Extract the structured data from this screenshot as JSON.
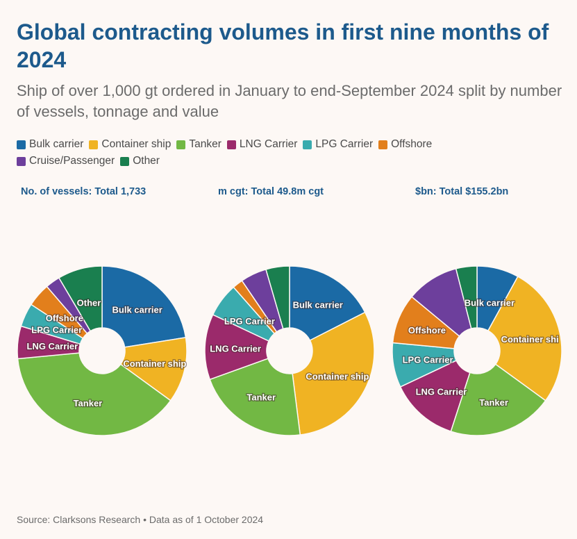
{
  "title": "Global contracting volumes in first nine months of 2024",
  "subtitle": "Ship of over 1,000 gt ordered in January to end-September 2024 split by number of vessels, tonnage and value",
  "legend": [
    {
      "label": "Bulk carrier",
      "color": "#1b6aa5"
    },
    {
      "label": "Container ship",
      "color": "#f0b323"
    },
    {
      "label": "Tanker",
      "color": "#72b844"
    },
    {
      "label": "LNG Carrier",
      "color": "#9b2a6b"
    },
    {
      "label": "LPG Carrier",
      "color": "#3aabae"
    },
    {
      "label": "Offshore",
      "color": "#e27f1c"
    },
    {
      "label": "Cruise/Passenger",
      "color": "#6d3f9c"
    },
    {
      "label": "Other",
      "color": "#1a7f4f"
    }
  ],
  "source": "Source: Clarksons Research • Data as of 1 October 2024",
  "chart_data": [
    {
      "type": "pie",
      "title": "No. of vessels: Total 1,733",
      "categories": [
        "Bulk carrier",
        "Container ship",
        "Tanker",
        "LNG Carrier",
        "LPG Carrier",
        "Offshore",
        "Cruise/Passenger",
        "Other"
      ],
      "values": [
        22.5,
        12.5,
        38.5,
        6.2,
        4.5,
        4.5,
        2.8,
        8.5
      ],
      "slice_labels": [
        "Bulk carrier",
        "Container ship",
        "Tanker",
        "LNG Carrier",
        "LPG Carrier",
        "Offshore",
        "",
        "Other"
      ]
    },
    {
      "type": "pie",
      "title": "m cgt: Total 49.8m cgt",
      "categories": [
        "Bulk carrier",
        "Container ship",
        "Tanker",
        "LNG Carrier",
        "LPG Carrier",
        "Offshore",
        "Cruise/Passenger",
        "Other"
      ],
      "values": [
        17.5,
        30.5,
        21.5,
        12.5,
        6.5,
        2.0,
        5.0,
        4.5
      ],
      "slice_labels": [
        "Bulk carrier",
        "Container ship",
        "Tanker",
        "LNG Carrier",
        "LPG Carrier",
        "",
        "",
        ""
      ]
    },
    {
      "type": "pie",
      "title": "$bn: Total $155.2bn",
      "categories": [
        "Bulk carrier",
        "Container ship",
        "Tanker",
        "LNG Carrier",
        "LPG Carrier",
        "Offshore",
        "Cruise/Passenger",
        "Other"
      ],
      "values": [
        8.0,
        27.0,
        20.0,
        13.0,
        8.5,
        9.5,
        10.0,
        4.0
      ],
      "slice_labels": [
        "Bulk carrier",
        "Container shi",
        "Tanker",
        "LNG Carrier",
        "LPG Carrier",
        "Offshore",
        "",
        ""
      ]
    }
  ]
}
